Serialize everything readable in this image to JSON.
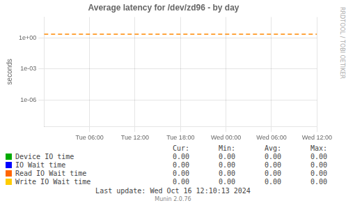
{
  "chart_data": {
    "type": "line",
    "title": "Average latency for /dev/zd96 - by day",
    "ylabel": "seconds",
    "log": "y",
    "grid": true,
    "xlim": [
      0,
      36
    ],
    "xticks": [
      {
        "value": 6,
        "label": "Tue 06:00"
      },
      {
        "value": 12,
        "label": "Tue 12:00"
      },
      {
        "value": 18,
        "label": "Tue 18:00"
      },
      {
        "value": 24,
        "label": "Wed 00:00"
      },
      {
        "value": 30,
        "label": "Wed 06:00"
      },
      {
        "value": 36,
        "label": "Wed 12:00"
      }
    ],
    "ylim": [
      3e-09,
      100
    ],
    "yticks": [
      {
        "value": 1e-06,
        "label": "1e-06"
      },
      {
        "value": 0.001,
        "label": "1e-03"
      },
      {
        "value": 1,
        "label": "1e+00"
      }
    ],
    "hline": {
      "value": 2.2,
      "color": "#ff8800",
      "line_style": "dashed"
    },
    "stat_headers": [
      "Cur:",
      "Min:",
      "Avg:",
      "Max:"
    ],
    "series": [
      {
        "name": "Device IO time",
        "color": "#00aa00",
        "stats": [
          0.0,
          0.0,
          0.0,
          0.0
        ],
        "stat_labels": [
          "0.00",
          "0.00",
          "0.00",
          "0.00"
        ]
      },
      {
        "name": "IO Wait time",
        "color": "#0000ff",
        "stats": [
          0.0,
          0.0,
          0.0,
          0.0
        ],
        "stat_labels": [
          "0.00",
          "0.00",
          "0.00",
          "0.00"
        ]
      },
      {
        "name": "Read IO Wait time",
        "color": "#ff6600",
        "stats": [
          0.0,
          0.0,
          0.0,
          0.0
        ],
        "stat_labels": [
          "0.00",
          "0.00",
          "0.00",
          "0.00"
        ]
      },
      {
        "name": "Write IO Wait time",
        "color": "#ffcc00",
        "stats": [
          0.0,
          0.0,
          0.0,
          0.0
        ],
        "stat_labels": [
          "0.00",
          "0.00",
          "0.00",
          "0.00"
        ]
      }
    ],
    "notes": [
      "Last update: Wed Oct 16 12:10:13 2024",
      "Munin 2.0.76"
    ],
    "watermark": "RRDTOOL / TOBI OETIKER"
  }
}
